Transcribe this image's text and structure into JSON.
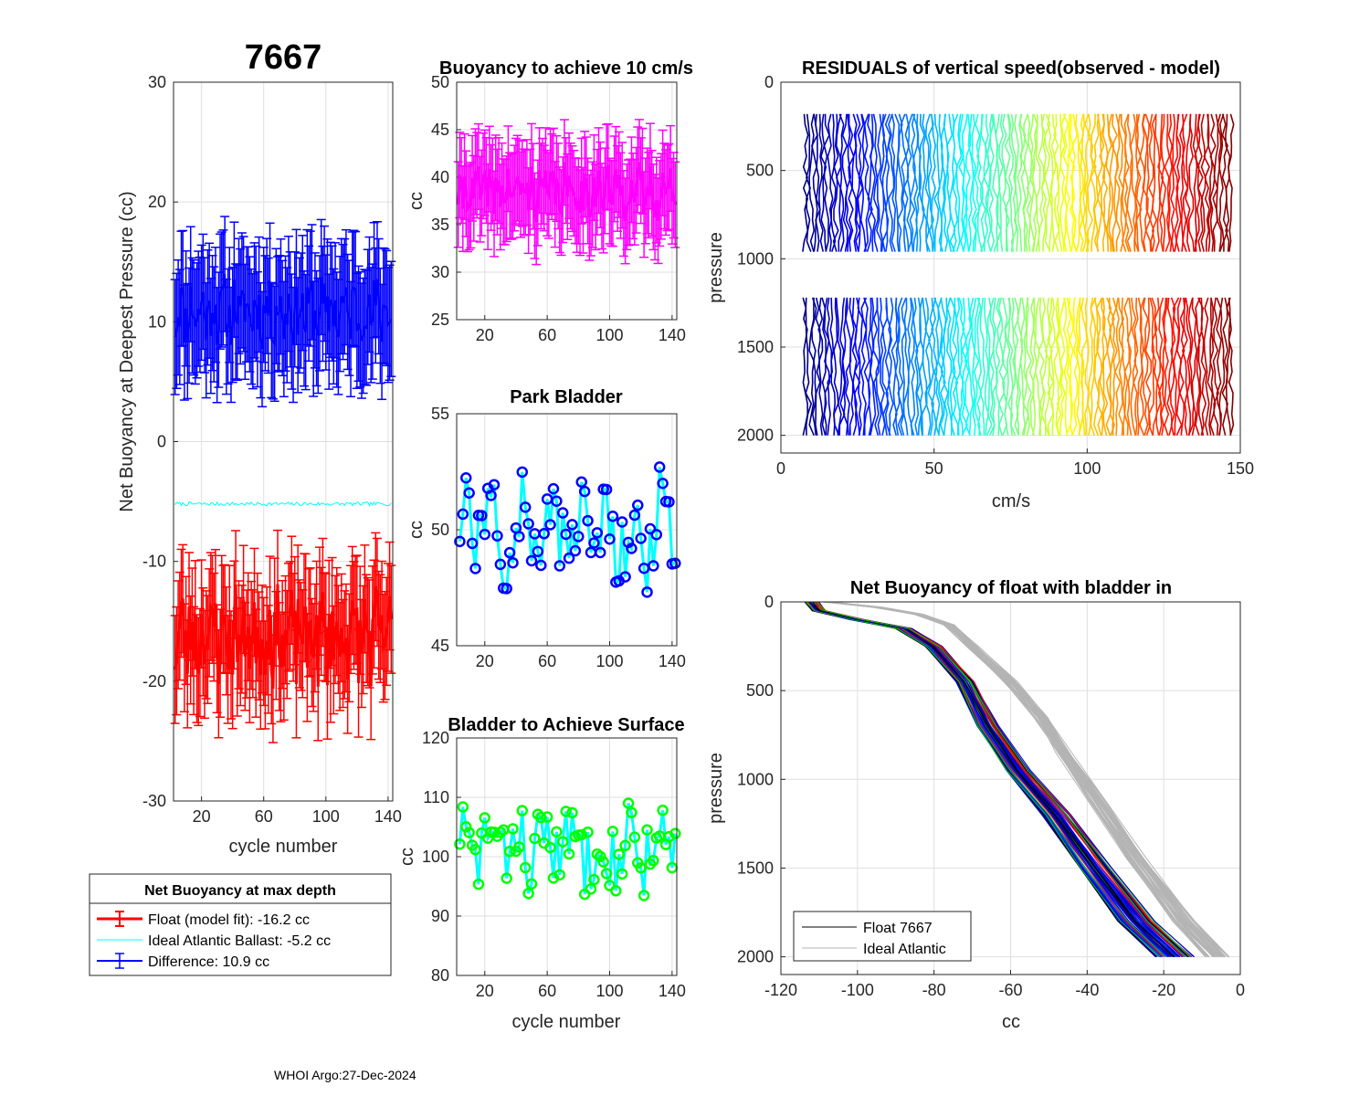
{
  "figure": {
    "float_id": "7667",
    "footer": "WHOI Argo:27-Dec-2024"
  },
  "chart_data": [
    {
      "id": "net_buoyancy",
      "type": "line",
      "title": "7667",
      "xlabel": "cycle number",
      "ylabel": "Net Buoyancy at Deepest Pressure (cc)",
      "xlim": [
        2,
        143
      ],
      "ylim": [
        -30,
        30
      ],
      "xticks": [
        20,
        60,
        100,
        140
      ],
      "yticks": [
        -30,
        -20,
        -10,
        0,
        10,
        20,
        30
      ],
      "legend_title": "Net Buoyancy at max depth",
      "series": [
        {
          "name": "Float (model fit): -16.2 cc",
          "color": "#ff0000",
          "mean": -16.2,
          "spread": 3.5,
          "err": 4.5,
          "errorbars": true,
          "width": 3
        },
        {
          "name": "Ideal Atlantic Ballast:  -5.2 cc",
          "color": "#00ffff",
          "mean": -5.2,
          "spread": 0.15,
          "err": 0,
          "errorbars": false,
          "width": 1
        },
        {
          "name": "Difference:  10.9 cc",
          "color": "#0000ff",
          "mean": 10.9,
          "spread": 2.5,
          "err": 4.8,
          "errorbars": true,
          "width": 2
        }
      ]
    },
    {
      "id": "buoyancy_10cms",
      "type": "line",
      "title": "Buoyancy to achieve 10 cm/s",
      "xlabel": "",
      "ylabel": "cc",
      "xlim": [
        2,
        143
      ],
      "ylim": [
        25,
        50
      ],
      "xticks": [
        20,
        60,
        100,
        140
      ],
      "yticks": [
        25,
        30,
        35,
        40,
        45,
        50
      ],
      "series": [
        {
          "name": "buoyancy",
          "color": "#ff00ff",
          "mean": 38.5,
          "spread": 2.5,
          "err": 4.5
        }
      ]
    },
    {
      "id": "park_bladder",
      "type": "line",
      "title": "Park Bladder",
      "xlabel": "",
      "ylabel": "cc",
      "xlim": [
        2,
        143
      ],
      "ylim": [
        45,
        55
      ],
      "xticks": [
        20,
        60,
        100,
        140
      ],
      "yticks": [
        45,
        50,
        55
      ],
      "series": [
        {
          "name": "park bladder",
          "color": "#00ffff",
          "marker_color": "#0000ff",
          "mean": 50,
          "spread": 1.9
        }
      ]
    },
    {
      "id": "bladder_surface",
      "type": "line",
      "title": "Bladder to Achieve Surface",
      "xlabel": "cycle number",
      "ylabel": "cc",
      "xlim": [
        2,
        143
      ],
      "ylim": [
        80,
        120
      ],
      "xticks": [
        20,
        60,
        100,
        140
      ],
      "yticks": [
        80,
        90,
        100,
        110,
        120
      ],
      "series": [
        {
          "name": "surface bladder",
          "color": "#00ffff",
          "marker_color": "#00ff00",
          "mean": 102,
          "spread": 6
        }
      ]
    },
    {
      "id": "residuals",
      "type": "line",
      "title": "RESIDUALS of vertical speed(observed - model)",
      "xlabel": "cm/s",
      "ylabel": "pressure",
      "xlim": [
        0,
        150
      ],
      "ylim": [
        0,
        2100
      ],
      "y_reversed": true,
      "xticks": [
        0,
        50,
        100,
        150
      ],
      "yticks": [
        0,
        500,
        1000,
        1500,
        2000
      ],
      "profiles": {
        "count": 140,
        "x_start": 8,
        "x_step": 1,
        "segments": [
          [
            180,
            1000
          ],
          [
            1220,
            2000
          ]
        ],
        "colormap": "jet"
      }
    },
    {
      "id": "net_buoyancy_bladder_in",
      "type": "line",
      "title": "Net Buoyancy of float with bladder in",
      "xlabel": "cc",
      "ylabel": "pressure",
      "xlim": [
        -120,
        0
      ],
      "ylim": [
        0,
        2100
      ],
      "y_reversed": true,
      "xticks": [
        -120,
        -100,
        -80,
        -60,
        -40,
        -20,
        0
      ],
      "yticks": [
        0,
        500,
        1000,
        1500,
        2000
      ],
      "legend": "bottom-left",
      "series": [
        {
          "name": "Float 7667",
          "color": "#000000",
          "profile": [
            [
              -112,
              0
            ],
            [
              -110,
              50
            ],
            [
              -100,
              100
            ],
            [
              -88,
              150
            ],
            [
              -80,
              250
            ],
            [
              -72,
              450
            ],
            [
              -66,
              700
            ],
            [
              -58,
              950
            ],
            [
              -48,
              1200
            ],
            [
              -38,
              1500
            ],
            [
              -27,
              1800
            ],
            [
              -17,
              2000
            ]
          ]
        },
        {
          "name": "Ideal Atlantic",
          "color": "#b4b4b4",
          "profile": [
            [
              -108,
              0
            ],
            [
              -95,
              30
            ],
            [
              -84,
              70
            ],
            [
              -76,
              130
            ],
            [
              -70,
              250
            ],
            [
              -60,
              450
            ],
            [
              -52,
              650
            ],
            [
              -46,
              850
            ],
            [
              -38,
              1100
            ],
            [
              -27,
              1450
            ],
            [
              -15,
              1800
            ],
            [
              -6,
              2000
            ]
          ]
        }
      ]
    }
  ]
}
